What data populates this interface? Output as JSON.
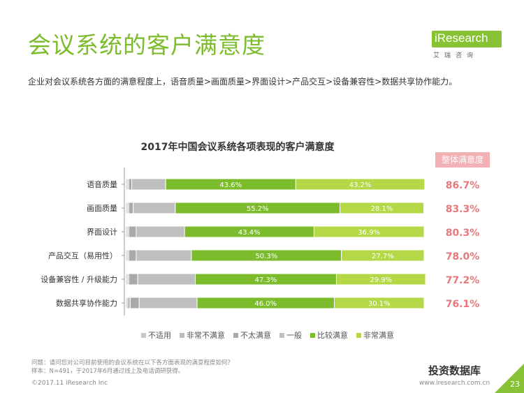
{
  "page": {
    "title": "会议系统的客户满意度",
    "logo_text": "iResearch",
    "logo_sub": "艾瑞咨询",
    "subtitle": "企业对会议系统各方面的满意程度上，语音质量>画面质量>界面设计>产品交互>设备兼容性>数据共享协作能力。",
    "note1": "问题：请问您对公司目前使用的会议系统在以下各方面表现的满意程度如何？",
    "note2": "样本：N=491，于2017年6月通过线上及电话调研获得。",
    "footer_left": "©2017.11 iResearch Inc",
    "footer_right": "www.iresearch.com.cn",
    "watermark": "投资数据库",
    "page_number": "23",
    "overall_header": "整体满意度"
  },
  "colors": {
    "title_green": "#7cbb2c",
    "overall_red": "#e8787c",
    "not_applicable": "#c8c8c8",
    "very_unsatisfied": "#bdbdbd",
    "not_satisfied": "#a9a9a9",
    "neutral": "#bfbfbf",
    "satisfied": "#7cbb2c",
    "very_satisfied": "#b5d846"
  },
  "chart_data": {
    "type": "bar",
    "orientation": "horizontal",
    "stacked": true,
    "title": "2017年中国会议系统各项表现的客户满意度",
    "categories": [
      "语音质量",
      "画面质量",
      "界面设计",
      "产品交互（易用性）",
      "设备兼容性 / 升级能力",
      "数据共享协作能力"
    ],
    "series": [
      {
        "name": "不适用",
        "values": [
          0.5,
          0.5,
          0.5,
          0.5,
          0.5,
          0.5
        ]
      },
      {
        "name": "非常不满意",
        "values": [
          0.5,
          0.5,
          0.5,
          0.5,
          0.5,
          1.0
        ]
      },
      {
        "name": "不太满意",
        "values": [
          1.0,
          1.5,
          2.5,
          2.5,
          3.0,
          3.0
        ]
      },
      {
        "name": "一般",
        "values": [
          11.4,
          14.1,
          16.2,
          18.5,
          19.3,
          19.4
        ]
      },
      {
        "name": "比较满意",
        "values": [
          43.6,
          55.2,
          43.4,
          50.3,
          47.3,
          46.0
        ]
      },
      {
        "name": "非常满意",
        "values": [
          43.2,
          28.1,
          36.9,
          27.7,
          29.9,
          30.1
        ]
      }
    ],
    "labeled_series": [
      "比较满意",
      "非常满意"
    ],
    "overall_satisfaction": [
      "86.7%",
      "83.3%",
      "80.3%",
      "78.0%",
      "77.2%",
      "76.1%"
    ],
    "xlim": [
      0,
      100
    ]
  }
}
